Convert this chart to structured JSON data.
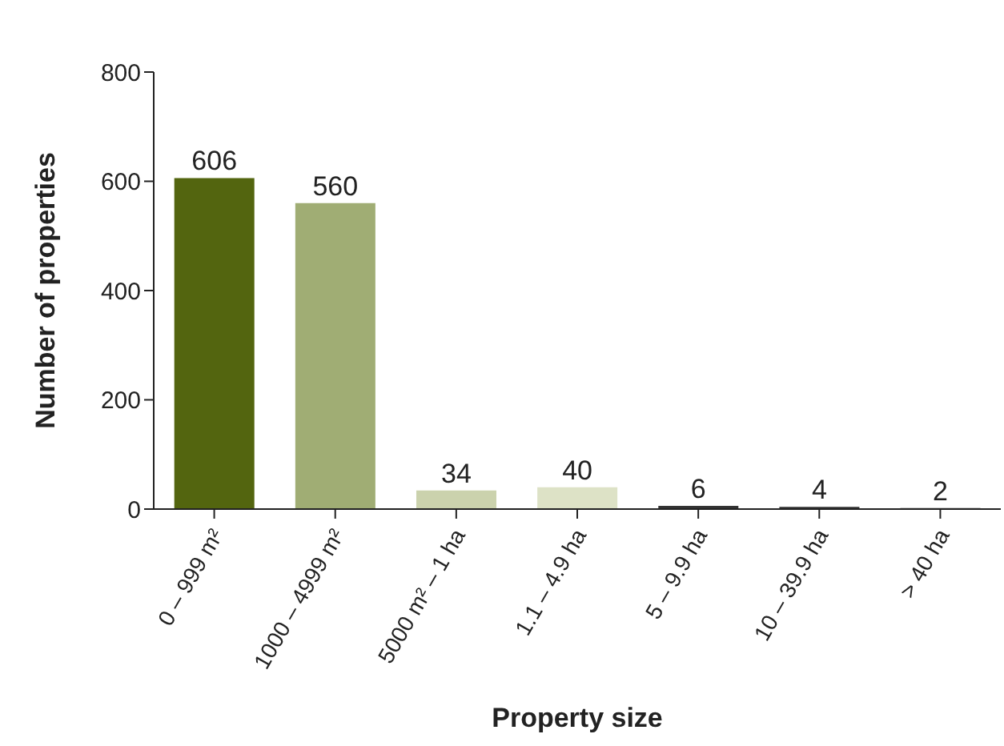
{
  "chart_data": {
    "type": "bar",
    "xlabel": "Property size",
    "ylabel": "Number of properties",
    "categories": [
      "0 – 999 m²",
      "1000 – 4999 m²",
      "5000 m² – 1 ha",
      "1.1 – 4.9 ha",
      "5 – 9.9 ha",
      "10 – 39.9 ha",
      "> 40 ha"
    ],
    "values": [
      606,
      560,
      34,
      40,
      6,
      4,
      2
    ],
    "colors": [
      "#53650f",
      "#a0ad74",
      "#cbd2ad",
      "#dde2c6",
      "#333333",
      "#333333",
      "#333333"
    ],
    "ylim": [
      0,
      800
    ],
    "yticks": [
      0,
      200,
      400,
      600,
      800
    ],
    "data_labels": true,
    "grid": false
  }
}
